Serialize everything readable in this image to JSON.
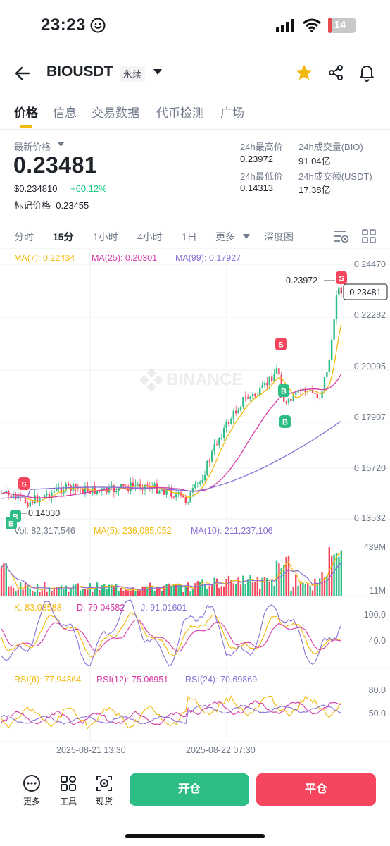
{
  "status": {
    "time": "23:23",
    "battery": "14",
    "battery_level": 0.14
  },
  "header": {
    "symbol": "BIOUSDT",
    "contract_type": "永续"
  },
  "tabs": [
    "价格",
    "信息",
    "交易数据",
    "代币检测",
    "广场"
  ],
  "price": {
    "last_label": "最新价格",
    "last_price": "0.23481",
    "usd_price": "$0.234810",
    "change": "+60.12%",
    "mark_price_label": "标记价格",
    "mark_price": "0.23455"
  },
  "stats": {
    "high_label": "24h最高价",
    "high": "0.23972",
    "low_label": "24h最低价",
    "low": "0.14313",
    "vol_base_label": "24h成交量(BIO)",
    "vol_base": "91.04亿",
    "vol_quote_label": "24h成交额(USDT)",
    "vol_quote": "17.38亿"
  },
  "intervals": [
    "分时",
    "15分",
    "1小时",
    "4小时",
    "1日",
    "更多",
    "深度图"
  ],
  "chart": {
    "watermark": "BINANCE",
    "ma_labels": [
      "MA(7): 0.22434",
      "MA(25): 0.20301",
      "MA(99): 0.17927"
    ],
    "price_ticks": [
      "0.24470",
      "0.22282",
      "0.20095",
      "0.17907",
      "0.15720",
      "0.13532"
    ],
    "high_mark": "0.23972",
    "current_price_tag": "0.23481",
    "low_mark": "0.14030",
    "vol_labels": [
      "Vol: 82,317,546",
      "MA(5): 236,085,052",
      "MA(10): 211,237,106"
    ],
    "vol_ticks": [
      "439M",
      "11M"
    ],
    "kdj_labels": [
      "K: 83.03588",
      "D: 79.04582",
      "J: 91.01601"
    ],
    "kdj_ticks": [
      "100.0",
      "40.0"
    ],
    "rsi_labels": [
      "RSI(6): 77.94364",
      "RSI(12): 75.06951",
      "RSI(24): 70.69869"
    ],
    "rsi_ticks": [
      "80.0",
      "50.0"
    ],
    "time_labels": [
      "2025-08-21 13:30",
      "2025-08-22 07:30"
    ],
    "sell_marker": "S",
    "buy_marker": "B"
  },
  "colors": {
    "up": "#2ebd85",
    "down": "#f6465d",
    "ma7": "#f0b90b",
    "ma25": "#d63aa7",
    "ma99": "#8a6fd6",
    "accent": "#f0b90b"
  },
  "bottom": {
    "tools": [
      "更多",
      "工具",
      "现货"
    ],
    "open_label": "开仓",
    "close_label": "平仓"
  }
}
